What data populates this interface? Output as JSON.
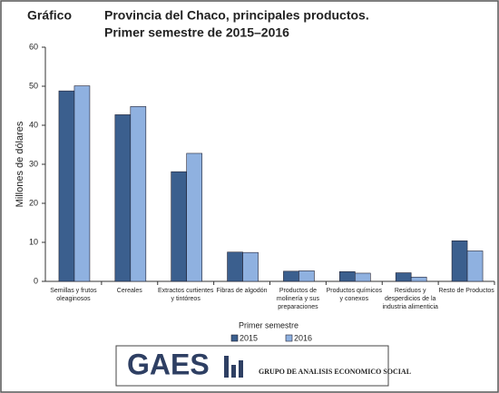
{
  "chart_data": {
    "type": "bar",
    "figure_label": "Gráfico",
    "title": "Provincia del Chaco, principales productos.",
    "subtitle": "Primer semestre de 2015–2016",
    "y_label": "Millones de dólares",
    "legend_title": "Primer semestre",
    "categories": [
      "Semillas y frutos\noleaginosos",
      "Cereales",
      "Extractos curtientes\ny tintóreos",
      "Fibras de algodón",
      "Productos de\nmolinería y sus\npreparaciones",
      "Productos químicos\ny conexos",
      "Residuos y\ndesperdicios de la\nindustria alimenticia",
      "Resto de Productos"
    ],
    "series": [
      {
        "name": "2015",
        "color": "#3b5f8e",
        "values": [
          48.8,
          42.7,
          28.1,
          7.5,
          2.6,
          2.5,
          2.2,
          10.4
        ]
      },
      {
        "name": "2016",
        "color": "#8fb1e0",
        "values": [
          50.1,
          44.8,
          32.8,
          7.4,
          2.7,
          2.1,
          1.1,
          7.8
        ]
      }
    ],
    "ylim": [
      0,
      60
    ],
    "yticks": [
      0,
      10,
      20,
      30,
      40,
      50,
      60
    ],
    "grid": false
  },
  "logo": {
    "name": "GAES",
    "tagline": "GRUPO DE ANALISIS ECONOMICO SOCIAL"
  }
}
